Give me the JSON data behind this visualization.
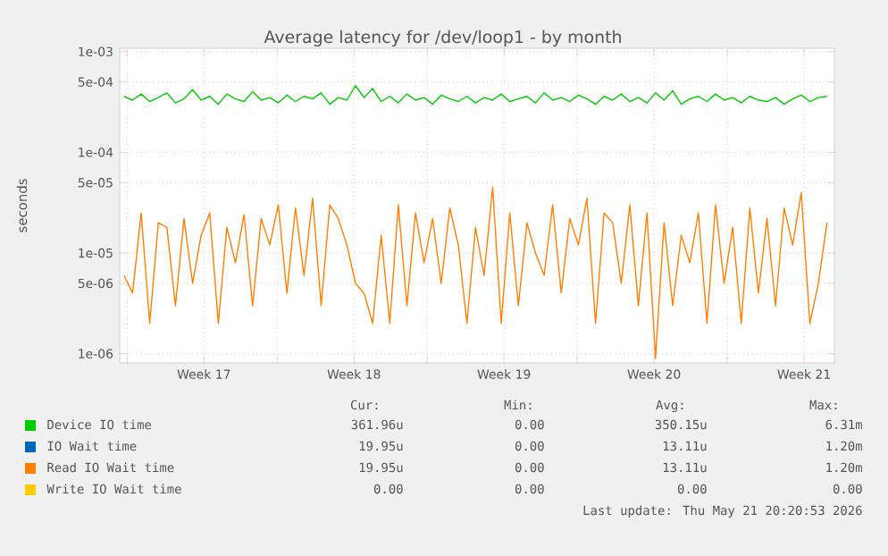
{
  "chart_data": {
    "type": "line",
    "title": "Average latency for /dev/loop1 - by month",
    "ylabel": "seconds",
    "log": true,
    "grid": true,
    "legend": "bottom",
    "marker": "none",
    "xlim": [
      "2026-04-18T12:00",
      "2026-05-21T20:20"
    ],
    "ylim": [
      8.1e-07,
      0.00108
    ],
    "xticks": [
      {
        "value": "2026-04-18T20:20",
        "label": null
      },
      {
        "value": "2026-04-22T10:20",
        "label": "Week 17"
      },
      {
        "value": "2026-04-25T20:20",
        "label": null
      },
      {
        "value": "2026-04-29T10:20",
        "label": "Week 18"
      },
      {
        "value": "2026-05-02T20:20",
        "label": null
      },
      {
        "value": "2026-05-06T10:20",
        "label": "Week 19"
      },
      {
        "value": "2026-05-09T20:20",
        "label": null
      },
      {
        "value": "2026-05-13T10:20",
        "label": "Week 20"
      },
      {
        "value": "2026-05-16T20:20",
        "label": null
      },
      {
        "value": "2026-05-20T10:20",
        "label": "Week 21"
      }
    ],
    "yticks": [
      {
        "value": 1e-06,
        "label": "1e-06"
      },
      {
        "value": 5e-06,
        "label": "5e-06"
      },
      {
        "value": 1e-05,
        "label": "1e-05"
      },
      {
        "value": 5e-05,
        "label": "5e-05"
      },
      {
        "value": 0.0001,
        "label": "1e-04"
      },
      {
        "value": 0.0005,
        "label": "5e-04"
      },
      {
        "value": 0.001,
        "label": "1e-03"
      }
    ],
    "x": [
      "2026-04-18T16:48",
      "2026-04-19T02:24",
      "2026-04-19T12:00",
      "2026-04-19T21:36",
      "2026-04-20T07:12",
      "2026-04-20T16:48",
      "2026-04-21T02:24",
      "2026-04-21T12:00",
      "2026-04-21T21:36",
      "2026-04-22T07:12",
      "2026-04-22T16:48",
      "2026-04-23T02:24",
      "2026-04-23T12:00",
      "2026-04-23T21:36",
      "2026-04-24T07:12",
      "2026-04-24T16:48",
      "2026-04-25T02:24",
      "2026-04-25T12:00",
      "2026-04-25T21:36",
      "2026-04-26T07:12",
      "2026-04-26T16:48",
      "2026-04-27T02:24",
      "2026-04-27T12:00",
      "2026-04-27T21:36",
      "2026-04-28T07:12",
      "2026-04-28T16:48",
      "2026-04-29T02:24",
      "2026-04-29T12:00",
      "2026-04-29T21:36",
      "2026-04-30T07:12",
      "2026-04-30T16:48",
      "2026-05-01T02:24",
      "2026-05-01T12:00",
      "2026-05-01T21:36",
      "2026-05-02T07:12",
      "2026-05-02T16:48",
      "2026-05-03T02:24",
      "2026-05-03T12:00",
      "2026-05-03T21:36",
      "2026-05-04T07:12",
      "2026-05-04T16:48",
      "2026-05-05T02:24",
      "2026-05-05T12:00",
      "2026-05-05T21:36",
      "2026-05-06T07:12",
      "2026-05-06T16:48",
      "2026-05-07T02:24",
      "2026-05-07T12:00",
      "2026-05-07T21:36",
      "2026-05-08T07:12",
      "2026-05-08T16:48",
      "2026-05-09T02:24",
      "2026-05-09T12:00",
      "2026-05-09T21:36",
      "2026-05-10T07:12",
      "2026-05-10T16:48",
      "2026-05-11T02:24",
      "2026-05-11T12:00",
      "2026-05-11T21:36",
      "2026-05-12T07:12",
      "2026-05-12T16:48",
      "2026-05-13T02:24",
      "2026-05-13T12:00",
      "2026-05-13T21:36",
      "2026-05-14T07:12",
      "2026-05-14T16:48",
      "2026-05-15T02:24",
      "2026-05-15T12:00",
      "2026-05-15T21:36",
      "2026-05-16T07:12",
      "2026-05-16T16:48",
      "2026-05-17T02:24",
      "2026-05-17T12:00",
      "2026-05-17T21:36",
      "2026-05-18T07:12",
      "2026-05-18T16:48",
      "2026-05-19T02:24",
      "2026-05-19T12:00",
      "2026-05-19T21:36",
      "2026-05-20T07:12",
      "2026-05-20T16:48",
      "2026-05-21T02:24",
      "2026-05-21T12:00"
    ],
    "series": [
      {
        "name": "Device IO time",
        "color": "#00cc00",
        "values": [
          0.00036,
          0.00033,
          0.00038,
          0.00032,
          0.00035,
          0.00039,
          0.00031,
          0.00034,
          0.00042,
          0.00033,
          0.00036,
          0.0003,
          0.00038,
          0.00034,
          0.00032,
          0.0004,
          0.00033,
          0.00035,
          0.00031,
          0.00037,
          0.00032,
          0.00036,
          0.00034,
          0.00039,
          0.0003,
          0.00035,
          0.00033,
          0.00046,
          0.00035,
          0.00043,
          0.00032,
          0.00036,
          0.00031,
          0.00038,
          0.00033,
          0.00035,
          0.0003,
          0.00037,
          0.00034,
          0.00032,
          0.00036,
          0.00031,
          0.00035,
          0.00033,
          0.00038,
          0.00032,
          0.00034,
          0.00036,
          0.00031,
          0.00039,
          0.00033,
          0.00035,
          0.00032,
          0.00037,
          0.00034,
          0.0003,
          0.00036,
          0.00033,
          0.00038,
          0.00032,
          0.00035,
          0.00031,
          0.00039,
          0.00033,
          0.00041,
          0.0003,
          0.00034,
          0.00036,
          0.00032,
          0.00038,
          0.00033,
          0.00035,
          0.00031,
          0.00036,
          0.00033,
          0.00032,
          0.00035,
          0.0003,
          0.00034,
          0.00037,
          0.00032,
          0.00035,
          0.00036
        ]
      },
      {
        "name": "IO Wait time",
        "color": "#0066b3",
        "values": [
          null,
          null,
          null,
          null,
          null,
          null,
          null,
          null,
          null,
          null,
          null,
          null,
          null,
          null,
          null,
          null,
          null,
          null,
          null,
          null,
          null,
          null,
          null,
          null,
          null,
          null,
          null,
          null,
          null,
          null,
          null,
          null,
          null,
          null,
          null,
          null,
          null,
          null,
          null,
          null,
          null,
          null,
          null,
          null,
          null,
          null,
          null,
          null,
          null,
          null,
          null,
          null,
          null,
          null,
          null,
          null,
          null,
          null,
          null,
          null,
          null,
          null,
          null,
          null,
          null,
          null,
          null,
          null,
          null,
          null,
          null,
          null,
          null,
          null,
          null,
          null,
          null,
          null,
          null,
          null,
          null,
          null,
          null
        ]
      },
      {
        "name": "Read IO Wait time",
        "color": "#ff8000",
        "values": [
          6e-06,
          4e-06,
          2.5e-05,
          2e-06,
          2e-05,
          1.8e-05,
          3e-06,
          2.2e-05,
          5e-06,
          1.5e-05,
          2.5e-05,
          2e-06,
          1.8e-05,
          8e-06,
          2.4e-05,
          3e-06,
          2.2e-05,
          1.2e-05,
          3e-05,
          4e-06,
          2.8e-05,
          6e-06,
          3.5e-05,
          3e-06,
          3e-05,
          2.2e-05,
          1.2e-05,
          5e-06,
          4e-06,
          2e-06,
          1.5e-05,
          2e-06,
          3e-05,
          3e-06,
          2.5e-05,
          8e-06,
          2.2e-05,
          5e-06,
          2.8e-05,
          1.2e-05,
          2e-06,
          1.8e-05,
          6e-06,
          4.5e-05,
          2e-06,
          2.5e-05,
          3e-06,
          2e-05,
          1e-05,
          6e-06,
          3e-05,
          4e-06,
          2.2e-05,
          1.2e-05,
          3.5e-05,
          2e-06,
          2.5e-05,
          2e-05,
          5e-06,
          3e-05,
          3e-06,
          2.5e-05,
          9e-07,
          2e-05,
          3e-06,
          1.5e-05,
          8e-06,
          2.5e-05,
          2e-06,
          3e-05,
          5e-06,
          1.8e-05,
          2e-06,
          2.8e-05,
          4e-06,
          2.2e-05,
          3e-06,
          2.8e-05,
          1.2e-05,
          4e-05,
          2e-06,
          5e-06,
          2e-05
        ]
      },
      {
        "name": "Write IO Wait time",
        "color": "#ffcc00",
        "values": [
          null,
          null,
          null,
          null,
          null,
          null,
          null,
          null,
          null,
          null,
          null,
          null,
          null,
          null,
          null,
          null,
          null,
          null,
          null,
          null,
          null,
          null,
          null,
          null,
          null,
          null,
          null,
          null,
          null,
          null,
          null,
          null,
          null,
          null,
          null,
          null,
          null,
          null,
          null,
          null,
          null,
          null,
          null,
          null,
          null,
          null,
          null,
          null,
          null,
          null,
          null,
          null,
          null,
          null,
          null,
          null,
          null,
          null,
          null,
          null,
          null,
          null,
          null,
          null,
          null,
          null,
          null,
          null,
          null,
          null,
          null,
          null,
          null,
          null,
          null,
          null,
          null,
          null,
          null,
          null,
          null,
          null,
          null
        ]
      }
    ],
    "annotations": [
      "Cur:",
      "Min:",
      "Avg:",
      "Max:",
      "361.96u",
      "0.00",
      "350.15u",
      "6.31m",
      "19.95u",
      "0.00",
      "13.11u",
      "1.20m",
      "19.95u",
      "0.00",
      "13.11u",
      "1.20m",
      "0.00",
      "0.00",
      "0.00",
      "0.00",
      "Last update: Thu May 21 20:20:53 2026"
    ]
  }
}
